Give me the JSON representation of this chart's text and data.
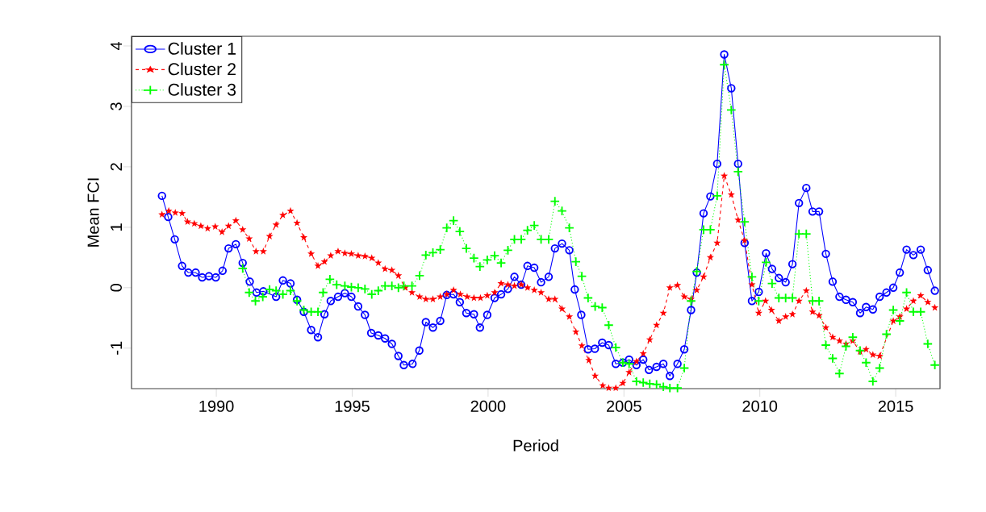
{
  "chart_data": {
    "type": "line",
    "xlabel": "Period",
    "ylabel": "Mean FCI",
    "xlim": [
      1986.88,
      2016.63
    ],
    "ylim": [
      -1.67,
      4.16
    ],
    "xticks": [
      1990,
      1995,
      2000,
      2005,
      2010,
      2015
    ],
    "yticks": [
      -1,
      0,
      1,
      2,
      3,
      4
    ],
    "grid": false,
    "legend": "top left",
    "series": [
      {
        "name": "Cluster 1",
        "color": "#0000ff",
        "marker": "circle",
        "line_style": "solid",
        "x": [
          1988.0,
          1988.23,
          1988.47,
          1988.74,
          1988.97,
          1989.24,
          1989.48,
          1989.73,
          1989.98,
          1990.23,
          1990.45,
          1990.72,
          1990.97,
          1991.23,
          1991.48,
          1991.73,
          1992.2,
          1992.45,
          1992.73,
          1992.97,
          1993.22,
          1993.49,
          1993.74,
          1993.98,
          1994.21,
          1994.48,
          1994.73,
          1994.97,
          1995.22,
          1995.47,
          1995.7,
          1995.96,
          1996.21,
          1996.46,
          1996.7,
          1996.9,
          1997.22,
          1997.47,
          1997.71,
          1997.97,
          1998.24,
          1998.48,
          1998.73,
          1998.96,
          1999.2,
          1999.48,
          1999.7,
          1999.97,
          2000.24,
          2000.48,
          2000.73,
          2000.97,
          2001.22,
          2001.45,
          2001.7,
          2001.95,
          2002.23,
          2002.46,
          2002.72,
          2002.99,
          2003.19,
          2003.43,
          2003.68,
          2003.93,
          2004.2,
          2004.44,
          2004.7,
          2004.96,
          2005.19,
          2005.46,
          2005.71,
          2005.92,
          2006.2,
          2006.45,
          2006.69,
          2006.97,
          2007.22,
          2007.47,
          2007.68,
          2007.93,
          2008.18,
          2008.43,
          2008.69,
          2008.95,
          2009.2,
          2009.44,
          2009.71,
          2009.96,
          2010.23,
          2010.45,
          2010.7,
          2010.95,
          2011.2,
          2011.44,
          2011.71,
          2011.94,
          2012.18,
          2012.43,
          2012.68,
          2012.93,
          2013.17,
          2013.42,
          2013.69,
          2013.91,
          2014.16,
          2014.41,
          2014.66,
          2014.91,
          2015.15,
          2015.4,
          2015.65,
          2015.92,
          2016.18,
          2016.44
        ],
        "values": [
          1.52,
          1.17,
          0.8,
          0.36,
          0.25,
          0.25,
          0.17,
          0.19,
          0.17,
          0.28,
          0.65,
          0.72,
          0.41,
          0.1,
          -0.08,
          -0.06,
          -0.15,
          0.12,
          0.07,
          -0.2,
          -0.4,
          -0.7,
          -0.82,
          -0.44,
          -0.22,
          -0.15,
          -0.09,
          -0.15,
          -0.31,
          -0.45,
          -0.75,
          -0.79,
          -0.84,
          -0.93,
          -1.13,
          -1.28,
          -1.26,
          -1.04,
          -0.57,
          -0.66,
          -0.55,
          -0.12,
          -0.11,
          -0.24,
          -0.42,
          -0.44,
          -0.66,
          -0.45,
          -0.17,
          -0.11,
          -0.02,
          0.18,
          0.05,
          0.36,
          0.33,
          0.09,
          0.18,
          0.65,
          0.73,
          0.62,
          -0.03,
          -0.45,
          -1.02,
          -1.01,
          -0.91,
          -0.95,
          -1.26,
          -1.24,
          -1.19,
          -1.28,
          -1.19,
          -1.36,
          -1.31,
          -1.26,
          -1.46,
          -1.26,
          -1.02,
          -0.37,
          0.25,
          1.23,
          1.51,
          2.05,
          3.86,
          3.3,
          2.05,
          0.74,
          -0.22,
          -0.07,
          0.57,
          0.31,
          0.16,
          0.09,
          0.39,
          1.4,
          1.65,
          1.26,
          1.26,
          0.56,
          0.1,
          -0.15,
          -0.2,
          -0.24,
          -0.42,
          -0.32,
          -0.36,
          -0.15,
          -0.08,
          0.0,
          0.25,
          0.63,
          0.54,
          0.63,
          0.29,
          -0.05
        ]
      },
      {
        "name": "Cluster 2",
        "color": "#ff0000",
        "marker": "star",
        "line_style": "dashed",
        "x": [
          1988.0,
          1988.25,
          1988.49,
          1988.74,
          1988.94,
          1989.19,
          1989.43,
          1989.68,
          1989.96,
          1990.21,
          1990.45,
          1990.72,
          1990.97,
          1991.21,
          1991.46,
          1991.73,
          1991.96,
          1992.2,
          1992.45,
          1992.73,
          1992.97,
          1993.22,
          1993.49,
          1993.74,
          1993.98,
          1994.21,
          1994.48,
          1994.73,
          1994.97,
          1995.22,
          1995.47,
          1995.72,
          1995.96,
          1996.21,
          1996.46,
          1996.7,
          1996.95,
          1997.2,
          1997.48,
          1997.71,
          1997.97,
          1998.24,
          1998.48,
          1998.73,
          1998.98,
          1999.23,
          1999.48,
          1999.72,
          1999.97,
          2000.24,
          2000.48,
          2000.73,
          2000.97,
          2001.22,
          2001.45,
          2001.7,
          2001.95,
          2002.23,
          2002.46,
          2002.72,
          2002.99,
          2003.23,
          2003.45,
          2003.71,
          2003.94,
          2004.22,
          2004.44,
          2004.7,
          2004.96,
          2005.19,
          2005.46,
          2005.71,
          2005.95,
          2006.2,
          2006.45,
          2006.69,
          2006.97,
          2007.22,
          2007.47,
          2007.68,
          2007.93,
          2008.18,
          2008.43,
          2008.69,
          2008.95,
          2009.2,
          2009.44,
          2009.71,
          2009.96,
          2010.21,
          2010.43,
          2010.7,
          2010.95,
          2011.2,
          2011.44,
          2011.71,
          2011.94,
          2012.18,
          2012.43,
          2012.68,
          2012.93,
          2013.17,
          2013.42,
          2013.69,
          2013.91,
          2014.16,
          2014.41,
          2014.91,
          2015.15,
          2015.4,
          2015.65,
          2015.92,
          2016.18,
          2016.44
        ],
        "values": [
          1.21,
          1.27,
          1.24,
          1.23,
          1.09,
          1.06,
          1.02,
          0.98,
          1.01,
          0.92,
          1.02,
          1.11,
          0.96,
          0.81,
          0.6,
          0.6,
          0.85,
          1.04,
          1.2,
          1.27,
          1.07,
          0.83,
          0.56,
          0.36,
          0.43,
          0.53,
          0.6,
          0.57,
          0.56,
          0.53,
          0.52,
          0.49,
          0.41,
          0.31,
          0.29,
          0.2,
          0.0,
          -0.08,
          -0.15,
          -0.19,
          -0.19,
          -0.15,
          -0.11,
          -0.04,
          -0.11,
          -0.15,
          -0.17,
          -0.17,
          -0.13,
          -0.08,
          0.07,
          0.05,
          0.03,
          0.05,
          0.0,
          -0.04,
          -0.08,
          -0.19,
          -0.19,
          -0.35,
          -0.48,
          -0.73,
          -0.96,
          -1.2,
          -1.46,
          -1.62,
          -1.66,
          -1.66,
          -1.58,
          -1.4,
          -1.22,
          -1.09,
          -0.86,
          -0.62,
          -0.42,
          0.0,
          0.04,
          -0.15,
          -0.19,
          -0.04,
          0.18,
          0.5,
          0.74,
          1.85,
          1.54,
          1.12,
          0.78,
          0.05,
          -0.42,
          -0.22,
          -0.37,
          -0.55,
          -0.48,
          -0.44,
          -0.22,
          -0.05,
          -0.4,
          -0.46,
          -0.66,
          -0.82,
          -0.88,
          -0.93,
          -0.88,
          -1.06,
          -1.02,
          -1.11,
          -1.13,
          -0.55,
          -0.48,
          -0.35,
          -0.22,
          -0.13,
          -0.24,
          -0.33
        ]
      },
      {
        "name": "Cluster 3",
        "color": "#00ff00",
        "marker": "cross",
        "line_style": "dotted",
        "x": [
          1990.97,
          1991.21,
          1991.44,
          1991.71,
          1991.96,
          1992.2,
          1992.45,
          1992.73,
          1992.97,
          1993.22,
          1993.49,
          1993.74,
          1993.93,
          1994.18,
          1994.43,
          1994.73,
          1994.97,
          1995.22,
          1995.47,
          1995.72,
          1995.96,
          1996.21,
          1996.46,
          1996.7,
          1996.9,
          1997.2,
          1997.48,
          1997.71,
          1997.97,
          1998.24,
          1998.48,
          1998.73,
          1998.96,
          1999.2,
          1999.48,
          1999.7,
          1999.97,
          2000.24,
          2000.48,
          2000.73,
          2000.97,
          2001.22,
          2001.45,
          2001.7,
          2001.95,
          2002.23,
          2002.46,
          2002.72,
          2002.99,
          2003.23,
          2003.45,
          2003.68,
          2003.94,
          2004.2,
          2004.44,
          2004.7,
          2004.96,
          2005.19,
          2005.46,
          2005.71,
          2005.95,
          2006.2,
          2006.45,
          2006.69,
          2006.97,
          2007.22,
          2007.47,
          2007.68,
          2007.93,
          2008.18,
          2008.43,
          2008.69,
          2008.95,
          2009.2,
          2009.44,
          2009.71,
          2009.96,
          2010.23,
          2010.45,
          2010.7,
          2010.95,
          2011.2,
          2011.44,
          2011.71,
          2011.94,
          2012.18,
          2012.43,
          2012.68,
          2012.93,
          2013.17,
          2013.42,
          2013.69,
          2013.91,
          2014.16,
          2014.41,
          2014.66,
          2014.91,
          2015.15,
          2015.4,
          2015.65,
          2015.92,
          2016.18,
          2016.44
        ],
        "values": [
          0.32,
          -0.08,
          -0.22,
          -0.15,
          -0.03,
          -0.05,
          -0.11,
          -0.05,
          -0.22,
          -0.37,
          -0.4,
          -0.4,
          -0.08,
          0.14,
          0.05,
          0.03,
          0.01,
          0.0,
          -0.02,
          -0.11,
          -0.05,
          0.03,
          0.03,
          0.0,
          0.03,
          0.03,
          0.2,
          0.54,
          0.58,
          0.63,
          0.99,
          1.11,
          0.93,
          0.65,
          0.49,
          0.35,
          0.46,
          0.53,
          0.41,
          0.62,
          0.8,
          0.8,
          0.95,
          1.03,
          0.8,
          0.8,
          1.43,
          1.27,
          0.99,
          0.43,
          0.19,
          -0.17,
          -0.31,
          -0.33,
          -0.62,
          -0.99,
          -1.24,
          -1.26,
          -1.55,
          -1.57,
          -1.59,
          -1.6,
          -1.64,
          -1.66,
          -1.66,
          -1.33,
          -0.22,
          0.27,
          0.96,
          0.96,
          1.52,
          3.69,
          2.94,
          1.92,
          1.09,
          0.18,
          -0.22,
          0.42,
          0.07,
          -0.17,
          -0.17,
          -0.17,
          0.89,
          0.89,
          -0.22,
          -0.22,
          -0.95,
          -1.17,
          -1.42,
          -0.97,
          -0.82,
          -1.04,
          -1.24,
          -1.55,
          -1.33,
          -0.77,
          -0.37,
          -0.55,
          -0.08,
          -0.4,
          -0.4,
          -0.93,
          -1.28
        ]
      }
    ]
  }
}
